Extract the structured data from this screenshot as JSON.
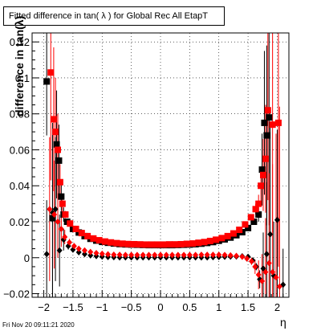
{
  "title": "Fitted difference in tan( λ ) for Global Rec All EtapT",
  "footer": "Fri Nov 20 09:11:21 2020",
  "chart_data": {
    "type": "scatter",
    "title": "Fitted difference in tan( λ ) for Global Rec All EtapT",
    "xlabel": "η",
    "ylabel": "difference in tan(λ)",
    "xlim": [
      -2.2,
      2.2
    ],
    "ylim": [
      -0.022,
      0.125
    ],
    "grid": true,
    "xticks": [
      -2,
      -1.5,
      -1,
      -0.5,
      0,
      0.5,
      1,
      1.5,
      2
    ],
    "xtick_labels": [
      "−2",
      "−1.5",
      "−1",
      "−0.5",
      "0",
      "0.5",
      "1",
      "1.5",
      "2"
    ],
    "yticks": [
      -0.02,
      0,
      0.02,
      0.04,
      0.06,
      0.08,
      0.1,
      0.12
    ],
    "ytick_labels": [
      "−0.02",
      "0",
      "0.02",
      "0.04",
      "0.06",
      "0.08",
      "0.1",
      "0.12"
    ],
    "series": [
      {
        "marker": "square",
        "color": "#000000",
        "x": [
          -1.95,
          -1.85,
          -1.78,
          -1.74,
          -1.7,
          -1.66,
          -1.6,
          -1.5,
          -1.4,
          -1.3,
          -1.2,
          -1.1,
          -1.0,
          -0.9,
          -0.8,
          -0.7,
          -0.6,
          -0.5,
          -0.4,
          -0.3,
          -0.2,
          -0.1,
          0.0,
          0.1,
          0.2,
          0.3,
          0.4,
          0.5,
          0.6,
          0.7,
          0.8,
          0.9,
          1.0,
          1.1,
          1.2,
          1.3,
          1.4,
          1.5,
          1.6,
          1.68,
          1.74,
          1.78,
          1.82,
          1.86
        ],
        "y": [
          0.098,
          0.022,
          0.063,
          0.054,
          0.034,
          0.024,
          0.02,
          0.016,
          0.014,
          0.012,
          0.0105,
          0.0095,
          0.0088,
          0.0083,
          0.0079,
          0.0076,
          0.0074,
          0.0073,
          0.0072,
          0.0071,
          0.007,
          0.007,
          0.007,
          0.007,
          0.007,
          0.0071,
          0.0072,
          0.0073,
          0.0075,
          0.0078,
          0.0082,
          0.0087,
          0.0094,
          0.0102,
          0.0112,
          0.0125,
          0.0142,
          0.0165,
          0.02,
          0.024,
          0.049,
          0.075,
          0.068,
          0.078
        ],
        "yerr": [
          0.03,
          0.05,
          0.03,
          0.02,
          0.008,
          0.004,
          0.0015,
          0.001,
          0.0008,
          0.0006,
          0.0005,
          0.0004,
          0.0004,
          0.0003,
          0.0003,
          0.0003,
          0.0003,
          0.0003,
          0.0003,
          0.0003,
          0.0003,
          0.0003,
          0.0003,
          0.0003,
          0.0003,
          0.0003,
          0.0003,
          0.0003,
          0.0003,
          0.0003,
          0.0003,
          0.0004,
          0.0004,
          0.0005,
          0.0005,
          0.0006,
          0.0008,
          0.001,
          0.0015,
          0.004,
          0.02,
          0.04,
          0.05,
          0.06
        ]
      },
      {
        "marker": "square",
        "color": "#ff0000",
        "x": [
          -1.88,
          -1.83,
          -1.8,
          -1.76,
          -1.72,
          -1.68,
          -1.63,
          -1.55,
          -1.45,
          -1.35,
          -1.25,
          -1.15,
          -1.05,
          -0.95,
          -0.85,
          -0.75,
          -0.65,
          -0.55,
          -0.45,
          -0.35,
          -0.25,
          -0.15,
          -0.05,
          0.05,
          0.15,
          0.25,
          0.35,
          0.45,
          0.55,
          0.65,
          0.75,
          0.85,
          0.95,
          1.05,
          1.15,
          1.25,
          1.35,
          1.45,
          1.55,
          1.63,
          1.68,
          1.72,
          1.76,
          1.8,
          1.84,
          1.92,
          2.02
        ],
        "y": [
          0.103,
          0.077,
          0.07,
          0.06,
          0.042,
          0.03,
          0.024,
          0.019,
          0.016,
          0.0137,
          0.012,
          0.0107,
          0.0097,
          0.009,
          0.0085,
          0.0081,
          0.0078,
          0.0076,
          0.0075,
          0.0074,
          0.0073,
          0.0073,
          0.0073,
          0.0073,
          0.0074,
          0.0074,
          0.0075,
          0.0077,
          0.0079,
          0.0083,
          0.0087,
          0.0093,
          0.01,
          0.0109,
          0.012,
          0.0135,
          0.0155,
          0.0185,
          0.0225,
          0.027,
          0.03,
          0.04,
          0.046,
          0.055,
          0.082,
          0.074,
          0.075
        ],
        "yerr": [
          0.06,
          0.04,
          0.03,
          0.02,
          0.01,
          0.005,
          0.002,
          0.0012,
          0.0008,
          0.0006,
          0.0005,
          0.0004,
          0.0004,
          0.0003,
          0.0003,
          0.0003,
          0.0003,
          0.0003,
          0.0003,
          0.0003,
          0.0003,
          0.0003,
          0.0003,
          0.0003,
          0.0003,
          0.0003,
          0.0003,
          0.0003,
          0.0003,
          0.0003,
          0.0003,
          0.0004,
          0.0004,
          0.0005,
          0.0005,
          0.0006,
          0.0008,
          0.001,
          0.0015,
          0.003,
          0.005,
          0.01,
          0.02,
          0.03,
          0.05,
          0.06,
          0.08
        ]
      },
      {
        "marker": "diamond",
        "color": "#000000",
        "x": [
          -1.95,
          -1.85,
          -1.8,
          -1.73,
          -1.66,
          -1.58,
          -1.5,
          -1.4,
          -1.3,
          -1.2,
          -1.1,
          -1.0,
          -0.9,
          -0.8,
          -0.7,
          -0.6,
          -0.5,
          -0.4,
          -0.3,
          -0.2,
          -0.1,
          0.0,
          0.1,
          0.2,
          0.3,
          0.4,
          0.5,
          0.6,
          0.7,
          0.8,
          0.9,
          1.0,
          1.1,
          1.2,
          1.3,
          1.4,
          1.5,
          1.58,
          1.64,
          1.7,
          1.76,
          1.82,
          1.88,
          1.94,
          2.0,
          2.1
        ],
        "y": [
          0.002,
          0.025,
          0.027,
          0.004,
          0.01,
          0.0065,
          0.0045,
          0.003,
          0.002,
          0.0013,
          0.0009,
          0.0006,
          0.0004,
          0.0003,
          0.0002,
          0.0002,
          0.0002,
          0.0002,
          0.0002,
          0.0002,
          0.0002,
          0.0002,
          0.0002,
          0.0002,
          0.0002,
          0.0002,
          0.0002,
          0.0002,
          0.0002,
          0.0002,
          0.0003,
          0.0004,
          0.0005,
          0.0006,
          0.0007,
          0.0008,
          0.0005,
          -0.0015,
          -0.005,
          -0.012,
          -0.006,
          0.002,
          0.013,
          -0.01,
          0.021,
          -0.015
        ],
        "yerr": [
          0.03,
          0.05,
          0.04,
          0.02,
          0.006,
          0.002,
          0.001,
          0.0008,
          0.0006,
          0.0005,
          0.0004,
          0.0004,
          0.0003,
          0.0003,
          0.0003,
          0.0003,
          0.0003,
          0.0003,
          0.0003,
          0.0003,
          0.0003,
          0.0003,
          0.0003,
          0.0003,
          0.0003,
          0.0003,
          0.0003,
          0.0003,
          0.0003,
          0.0003,
          0.0003,
          0.0004,
          0.0004,
          0.0005,
          0.0005,
          0.0006,
          0.0008,
          0.001,
          0.002,
          0.005,
          0.02,
          0.04,
          0.06,
          0.03,
          0.05,
          0.02
        ]
      },
      {
        "marker": "diamond",
        "color": "#ff0000",
        "x": [
          -1.9,
          -1.82,
          -1.76,
          -1.7,
          -1.64,
          -1.56,
          -1.48,
          -1.4,
          -1.3,
          -1.2,
          -1.1,
          -1.0,
          -0.9,
          -0.8,
          -0.7,
          -0.6,
          -0.5,
          -0.4,
          -0.3,
          -0.2,
          -0.1,
          0.0,
          0.1,
          0.2,
          0.3,
          0.4,
          0.5,
          0.6,
          0.7,
          0.8,
          0.9,
          1.0,
          1.1,
          1.2,
          1.3,
          1.4,
          1.48,
          1.56,
          1.62,
          1.68,
          1.74,
          1.8,
          1.86,
          1.92,
          1.98,
          2.04
        ],
        "y": [
          0.027,
          0.024,
          0.02,
          0.016,
          0.0115,
          0.0085,
          0.0065,
          0.005,
          0.004,
          0.0032,
          0.0026,
          0.0022,
          0.0019,
          0.0017,
          0.0016,
          0.0015,
          0.0015,
          0.0015,
          0.0015,
          0.0015,
          0.0015,
          0.0015,
          0.0015,
          0.0015,
          0.0015,
          0.0015,
          0.0015,
          0.0015,
          0.0016,
          0.0016,
          0.0016,
          0.0016,
          0.0015,
          0.0013,
          0.001,
          0.0005,
          -0.0005,
          -0.002,
          -0.005,
          -0.0095,
          -0.013,
          -0.008,
          -0.003,
          -0.008,
          -0.011,
          -0.016
        ],
        "yerr": [
          0.04,
          0.03,
          0.02,
          0.01,
          0.004,
          0.002,
          0.0012,
          0.0008,
          0.0006,
          0.0005,
          0.0004,
          0.0004,
          0.0003,
          0.0003,
          0.0003,
          0.0003,
          0.0003,
          0.0003,
          0.0003,
          0.0003,
          0.0003,
          0.0003,
          0.0003,
          0.0003,
          0.0003,
          0.0003,
          0.0003,
          0.0003,
          0.0003,
          0.0003,
          0.0003,
          0.0004,
          0.0004,
          0.0005,
          0.0006,
          0.0008,
          0.001,
          0.002,
          0.004,
          0.008,
          0.015,
          0.03,
          0.05,
          0.06,
          0.08,
          0.1
        ]
      }
    ]
  }
}
